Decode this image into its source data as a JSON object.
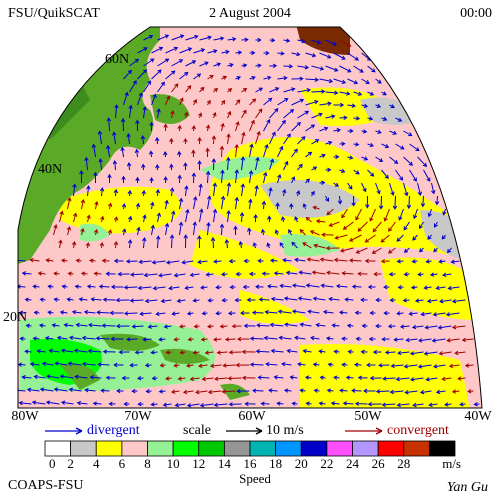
{
  "header": {
    "left": "FSU/QuikSCAT",
    "center": "2 August 2004",
    "right": "00:00"
  },
  "map": {
    "lat_labels": [
      "60N",
      "40N",
      "20N"
    ],
    "lon_labels": [
      "80W",
      "70W",
      "60W",
      "50W",
      "40W"
    ]
  },
  "legend": {
    "divergent": "divergent",
    "divergent_color": "#0000cc",
    "scale": "scale",
    "scale_value": "10 m/s",
    "convergent": "convergent",
    "convergent_color": "#a00000"
  },
  "colorbar": {
    "ticks": [
      "0",
      "2",
      "4",
      "6",
      "8",
      "10",
      "12",
      "14",
      "16",
      "18",
      "20",
      "22",
      "24",
      "26",
      "28"
    ],
    "colors": [
      "#ffffff",
      "#c8c8c8",
      "#ffff00",
      "#ffc8c8",
      "#96f096",
      "#00ff00",
      "#00c800",
      "#969696",
      "#00b4b4",
      "#0096ff",
      "#0000c8",
      "#ff50ff",
      "#b496ff",
      "#ff0000",
      "#c83200",
      "#000000"
    ],
    "unit": "m/s",
    "title": "Speed"
  },
  "footer": {
    "left": "COAPS-FSU",
    "right": "Yan Gu"
  }
}
